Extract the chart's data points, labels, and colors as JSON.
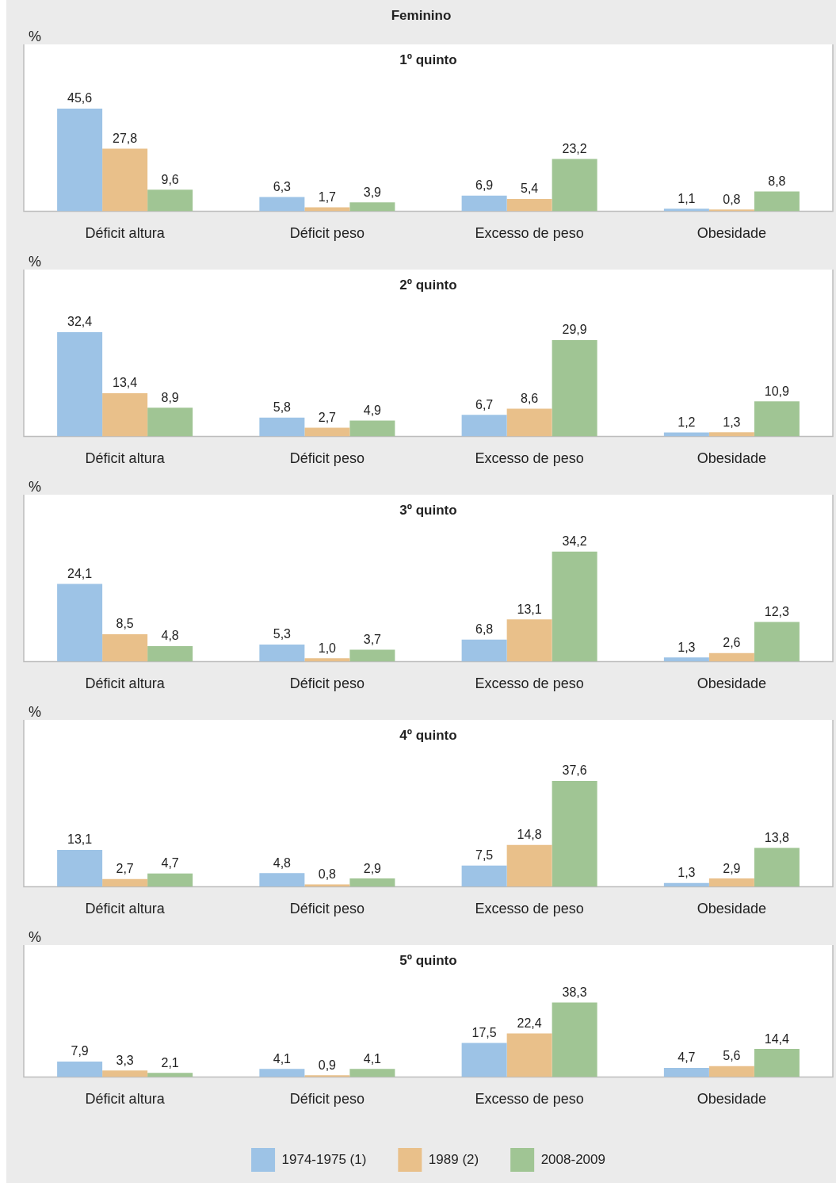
{
  "chart_data": [
    {
      "type": "bar",
      "title": "1º quinto",
      "ylabel": "%",
      "annotations": [
        "Feminino"
      ],
      "categories": [
        "Déficit altura",
        "Déficit peso",
        "Excesso de peso",
        "Obesidade"
      ],
      "series": [
        {
          "color": "#9dc3e6",
          "values": [
            45.6,
            6.3,
            6.9,
            1.1
          ],
          "value_labels": [
            "45,6",
            "6,3",
            "6,9",
            "1,1"
          ]
        },
        {
          "color": "#e9c08a",
          "values": [
            27.8,
            1.7,
            5.4,
            0.8
          ],
          "value_labels": [
            "27,8",
            "1,7",
            "5,4",
            "0,8"
          ]
        },
        {
          "color": "#a0c594",
          "values": [
            9.6,
            3.9,
            23.2,
            8.8
          ],
          "value_labels": [
            "9,6",
            "3,9",
            "23,2",
            "8,8"
          ]
        }
      ]
    },
    {
      "type": "bar",
      "title": "2º quinto",
      "ylabel": "%",
      "categories": [
        "Déficit altura",
        "Déficit peso",
        "Excesso de peso",
        "Obesidade"
      ],
      "series": [
        {
          "color": "#9dc3e6",
          "values": [
            32.4,
            5.8,
            6.7,
            1.2
          ],
          "value_labels": [
            "32,4",
            "5,8",
            "6,7",
            "1,2"
          ]
        },
        {
          "color": "#e9c08a",
          "values": [
            13.4,
            2.7,
            8.6,
            1.3
          ],
          "value_labels": [
            "13,4",
            "2,7",
            "8,6",
            "1,3"
          ]
        },
        {
          "color": "#a0c594",
          "values": [
            8.9,
            4.9,
            29.9,
            10.9
          ],
          "value_labels": [
            "8,9",
            "4,9",
            "29,9",
            "10,9"
          ]
        }
      ]
    },
    {
      "type": "bar",
      "title": "3º quinto",
      "ylabel": "%",
      "categories": [
        "Déficit altura",
        "Déficit peso",
        "Excesso de peso",
        "Obesidade"
      ],
      "series": [
        {
          "color": "#9dc3e6",
          "values": [
            24.1,
            5.3,
            6.8,
            1.3
          ],
          "value_labels": [
            "24,1",
            "5,3",
            "6,8",
            "1,3"
          ]
        },
        {
          "color": "#e9c08a",
          "values": [
            8.5,
            1.0,
            13.1,
            2.6
          ],
          "value_labels": [
            "8,5",
            "1,0",
            "13,1",
            "2,6"
          ]
        },
        {
          "color": "#a0c594",
          "values": [
            4.8,
            3.7,
            34.2,
            12.3
          ],
          "value_labels": [
            "4,8",
            "3,7",
            "34,2",
            "12,3"
          ]
        }
      ]
    },
    {
      "type": "bar",
      "title": "4º quinto",
      "ylabel": "%",
      "categories": [
        "Déficit altura",
        "Déficit peso",
        "Excesso de peso",
        "Obesidade"
      ],
      "series": [
        {
          "color": "#9dc3e6",
          "values": [
            13.1,
            4.8,
            7.5,
            1.3
          ],
          "value_labels": [
            "13,1",
            "4,8",
            "7,5",
            "1,3"
          ]
        },
        {
          "color": "#e9c08a",
          "values": [
            2.7,
            0.8,
            14.8,
            2.9
          ],
          "value_labels": [
            "2,7",
            "0,8",
            "14,8",
            "2,9"
          ]
        },
        {
          "color": "#a0c594",
          "values": [
            4.7,
            2.9,
            37.6,
            13.8
          ],
          "value_labels": [
            "4,7",
            "2,9",
            "37,6",
            "13,8"
          ]
        }
      ]
    },
    {
      "type": "bar",
      "title": "5º quinto",
      "ylabel": "%",
      "legend": "bottom",
      "categories": [
        "Déficit altura",
        "Déficit peso",
        "Excesso de peso",
        "Obesidade"
      ],
      "series": [
        {
          "name": "1974-1975 (1)",
          "color": "#9dc3e6",
          "values": [
            7.9,
            4.1,
            17.5,
            4.7
          ],
          "value_labels": [
            "7,9",
            "4,1",
            "17,5",
            "4,7"
          ]
        },
        {
          "name": "1989 (2)",
          "color": "#e9c08a",
          "values": [
            3.3,
            0.9,
            22.4,
            5.6
          ],
          "value_labels": [
            "3,3",
            "0,9",
            "22,4",
            "5,6"
          ]
        },
        {
          "name": "2008-2009",
          "color": "#a0c594",
          "values": [
            2.1,
            4.1,
            38.3,
            14.4
          ],
          "value_labels": [
            "2,1",
            "4,1",
            "38,3",
            "14,4"
          ]
        }
      ]
    }
  ]
}
